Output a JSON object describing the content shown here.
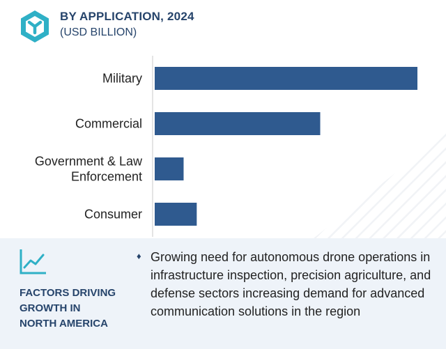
{
  "header": {
    "title": "BY APPLICATION, 2024",
    "subtitle": "(USD BILLION)"
  },
  "colors": {
    "bar": "#2f5a8f",
    "accent": "#2fb0c6",
    "text": "#26446b",
    "panel": "#eef3f9"
  },
  "chart_data": {
    "type": "bar",
    "orientation": "horizontal",
    "categories": [
      [
        "Military"
      ],
      [
        "Commercial"
      ],
      [
        "Government & Law",
        "Enforcement"
      ],
      [
        "Consumer"
      ]
    ],
    "values": [
      10.0,
      6.3,
      1.1,
      1.6
    ],
    "xlim": [
      0,
      10.0
    ],
    "grid": false,
    "legend": "none"
  },
  "factors": {
    "icon": "trend-line-icon",
    "label_lines": [
      "FACTORS DRIVING",
      "GROWTH IN",
      "NORTH AMERICA"
    ],
    "bullet_icon": "diamond-bullet-icon",
    "bullet_symbol": "♦",
    "bullet_text": "Growing need for autonomous drone operations in infrastructure inspection, precision agriculture, and defense sectors increasing demand for advanced communication solutions in the region"
  }
}
